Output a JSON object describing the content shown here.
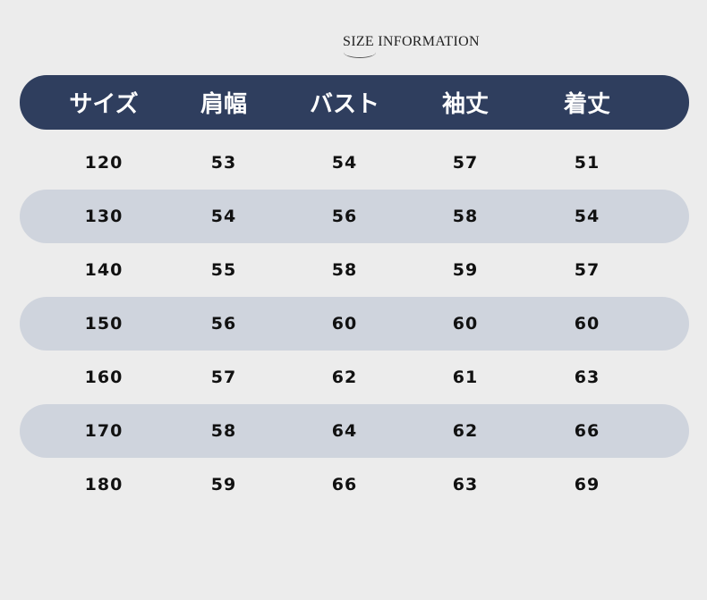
{
  "title": "SIZE INFORMATION",
  "colors": {
    "header": "#2f3e5e",
    "stripe": "#cfd4dd",
    "background": "#ececec"
  },
  "headers": [
    "サイズ",
    "肩幅",
    "バスト",
    "袖丈",
    "着丈"
  ],
  "rows": [
    [
      "120",
      "53",
      "54",
      "57",
      "51"
    ],
    [
      "130",
      "54",
      "56",
      "58",
      "54"
    ],
    [
      "140",
      "55",
      "58",
      "59",
      "57"
    ],
    [
      "150",
      "56",
      "60",
      "60",
      "60"
    ],
    [
      "160",
      "57",
      "62",
      "61",
      "63"
    ],
    [
      "170",
      "58",
      "64",
      "62",
      "66"
    ],
    [
      "180",
      "59",
      "66",
      "63",
      "69"
    ]
  ]
}
